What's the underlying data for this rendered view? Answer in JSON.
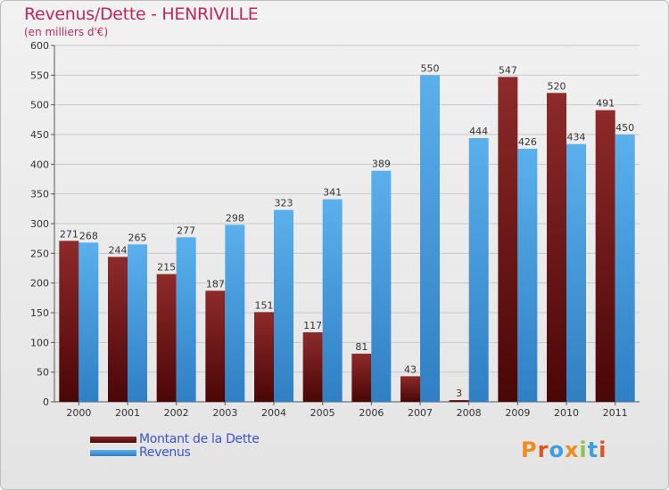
{
  "header": {
    "title": "Revenus/Dette - HENRIVILLE",
    "subtitle": "(en milliers d'€)"
  },
  "legend": {
    "items": [
      {
        "label": "Montant de la Dette",
        "color": "#7a1a1a"
      },
      {
        "label": "Revenus",
        "color": "#3d95dc"
      }
    ]
  },
  "logo": {
    "text": "Proxiti",
    "colors": [
      "#f08c1e",
      "#e2521c",
      "#3d9ee0",
      "#f08c1e",
      "#8cc63f",
      "#3d9ee0",
      "#e2521c"
    ]
  },
  "colors": {
    "dette": "#7a1a1a",
    "revenus": "#3d95dc",
    "title": "#c0285c"
  },
  "chart_data": {
    "type": "bar",
    "title": "Revenus/Dette - HENRIVILLE",
    "subtitle": "(en milliers d'€)",
    "categories": [
      "2000",
      "2001",
      "2002",
      "2003",
      "2004",
      "2005",
      "2006",
      "2007",
      "2008",
      "2009",
      "2010",
      "2011"
    ],
    "series": [
      {
        "name": "Montant de la Dette",
        "values": [
          271,
          244,
          215,
          187,
          151,
          117,
          81,
          43,
          3,
          547,
          520,
          491
        ]
      },
      {
        "name": "Revenus",
        "values": [
          268,
          265,
          277,
          298,
          323,
          341,
          389,
          550,
          444,
          426,
          434,
          450
        ]
      }
    ],
    "ylim": [
      0,
      600
    ],
    "yticks": [
      0,
      50,
      100,
      150,
      200,
      250,
      300,
      350,
      400,
      450,
      500,
      550,
      600
    ],
    "grid": true,
    "legend_position": "bottom-left"
  }
}
